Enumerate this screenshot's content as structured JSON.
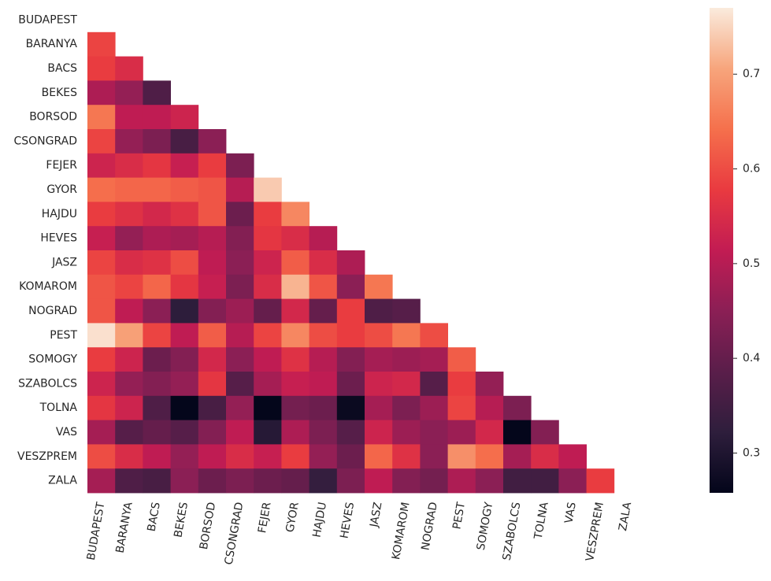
{
  "chart_data": {
    "type": "heatmap",
    "title": "",
    "xlabel": "",
    "ylabel": "",
    "mask": "upper-triangle-and-diagonal",
    "colormap": "rocket",
    "color_range": [
      0.258,
      0.77
    ],
    "colorbar": {
      "ticks": [
        0.3,
        0.4,
        0.5,
        0.6,
        0.7
      ],
      "tick_labels": [
        "0.3",
        "0.4",
        "0.5",
        "0.6",
        "0.7"
      ],
      "position": "right"
    },
    "labels": [
      "BUDAPEST",
      "BARANYA",
      "BACS",
      "BEKES",
      "BORSOD",
      "CSONGRAD",
      "FEJER",
      "GYOR",
      "HAJDU",
      "HEVES",
      "JASZ",
      "KOMAROM",
      "NOGRAD",
      "PEST",
      "SOMOGY",
      "SZABOLCS",
      "TOLNA",
      "VAS",
      "VESZPREM",
      "ZALA"
    ],
    "values": [
      [],
      [
        0.59
      ],
      [
        0.58,
        0.55
      ],
      [
        0.49,
        0.46,
        0.37
      ],
      [
        0.65,
        0.51,
        0.51,
        0.53
      ],
      [
        0.59,
        0.46,
        0.43,
        0.36,
        0.45
      ],
      [
        0.53,
        0.55,
        0.57,
        0.52,
        0.58,
        0.43
      ],
      [
        0.64,
        0.63,
        0.63,
        0.62,
        0.61,
        0.5,
        0.74
      ],
      [
        0.58,
        0.56,
        0.54,
        0.56,
        0.61,
        0.41,
        0.58,
        0.67
      ],
      [
        0.52,
        0.46,
        0.49,
        0.48,
        0.5,
        0.44,
        0.57,
        0.55,
        0.5
      ],
      [
        0.59,
        0.55,
        0.56,
        0.6,
        0.51,
        0.45,
        0.53,
        0.62,
        0.55,
        0.49
      ],
      [
        0.61,
        0.59,
        0.63,
        0.57,
        0.52,
        0.43,
        0.55,
        0.72,
        0.61,
        0.45,
        0.65
      ],
      [
        0.61,
        0.51,
        0.45,
        0.32,
        0.44,
        0.47,
        0.4,
        0.54,
        0.4,
        0.58,
        0.37,
        0.38
      ],
      [
        0.76,
        0.7,
        0.59,
        0.51,
        0.62,
        0.5,
        0.59,
        0.67,
        0.6,
        0.58,
        0.6,
        0.65,
        0.6
      ],
      [
        0.58,
        0.53,
        0.41,
        0.44,
        0.54,
        0.45,
        0.51,
        0.56,
        0.5,
        0.44,
        0.48,
        0.47,
        0.48,
        0.62
      ],
      [
        0.53,
        0.46,
        0.44,
        0.46,
        0.57,
        0.38,
        0.48,
        0.52,
        0.51,
        0.41,
        0.53,
        0.54,
        0.38,
        0.58,
        0.46
      ],
      [
        0.57,
        0.53,
        0.37,
        0.26,
        0.36,
        0.46,
        0.26,
        0.42,
        0.41,
        0.27,
        0.48,
        0.43,
        0.47,
        0.59,
        0.5,
        0.43
      ],
      [
        0.48,
        0.38,
        0.4,
        0.38,
        0.44,
        0.51,
        0.31,
        0.49,
        0.43,
        0.38,
        0.53,
        0.47,
        0.45,
        0.47,
        0.54,
        0.26,
        0.44
      ],
      [
        0.6,
        0.55,
        0.51,
        0.46,
        0.51,
        0.55,
        0.52,
        0.58,
        0.46,
        0.41,
        0.63,
        0.56,
        0.45,
        0.68,
        0.64,
        0.48,
        0.55,
        0.51
      ],
      [
        0.48,
        0.37,
        0.36,
        0.45,
        0.41,
        0.43,
        0.41,
        0.4,
        0.33,
        0.43,
        0.51,
        0.44,
        0.42,
        0.49,
        0.45,
        0.35,
        0.35,
        0.45,
        0.58
      ]
    ]
  }
}
